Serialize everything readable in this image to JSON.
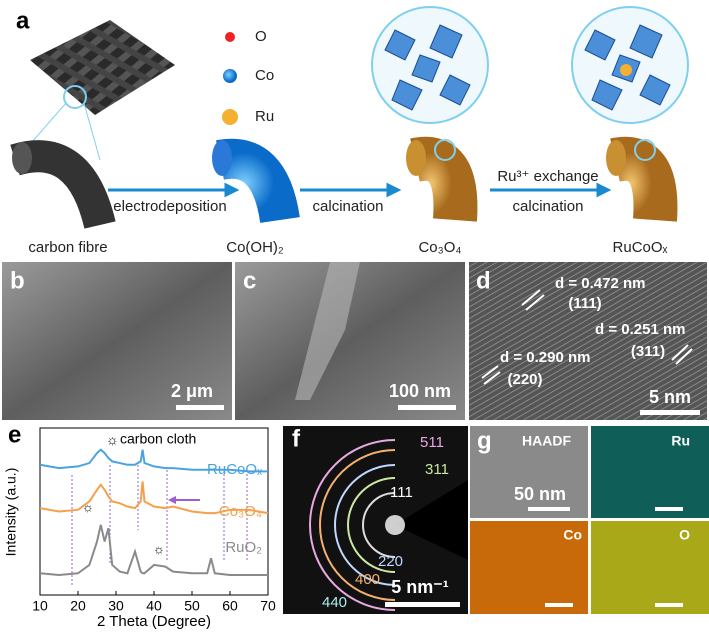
{
  "panel_a": {
    "letter": "a",
    "legend": [
      "O",
      "Co",
      "Ru"
    ],
    "labels": {
      "fibre": "carbon fibre",
      "step1": "electrodeposition",
      "hydroxide": "Co(OH)₂",
      "step2": "calcination",
      "oxide": "Co₃O₄",
      "step3a": "Ru³⁺ exchange",
      "step3b": "calcination",
      "product": "RuCoOₓ"
    }
  },
  "panel_b": {
    "letter": "b",
    "scale": "2 μm"
  },
  "panel_c": {
    "letter": "c",
    "scale": "100 nm"
  },
  "panel_d": {
    "letter": "d",
    "spacings": [
      {
        "d": "d = 0.472 nm",
        "plane": "(111)"
      },
      {
        "d": "d = 0.251 nm",
        "plane": "(311)"
      },
      {
        "d": "d = 0.290 nm",
        "plane": "(220)"
      }
    ],
    "scale": "5 nm"
  },
  "panel_e": {
    "letter": "e",
    "legend": "carbon cloth",
    "xlabel": "2 Theta (Degree)",
    "ylabel": "Intensity (a.u.)",
    "xlim": [
      10,
      70
    ],
    "xticks": [
      10,
      20,
      30,
      40,
      50,
      60,
      70
    ],
    "ylim": [
      0,
      10
    ],
    "x": [
      10,
      15,
      20,
      23,
      25,
      26,
      27,
      28,
      29,
      31,
      33,
      35,
      36.5,
      37,
      37.5,
      40,
      43,
      45,
      50,
      54,
      55,
      56,
      60,
      65,
      70
    ],
    "series": [
      {
        "name": "RuCoOₓ",
        "color": "#4aa3df",
        "values": [
          7.8,
          7.6,
          7.7,
          7.9,
          8.5,
          8.7,
          8.5,
          8.2,
          8.0,
          7.9,
          7.8,
          7.8,
          8.0,
          8.7,
          7.9,
          7.7,
          7.6,
          7.6,
          7.5,
          7.5,
          7.5,
          7.5,
          7.5,
          7.4,
          7.4
        ]
      },
      {
        "name": "Co₃O₄",
        "color": "#f5a04a",
        "values": [
          5.2,
          5.0,
          5.1,
          5.6,
          6.3,
          6.6,
          6.3,
          5.9,
          5.6,
          5.5,
          5.3,
          5.2,
          5.6,
          6.8,
          5.6,
          5.3,
          5.2,
          5.3,
          5.0,
          4.9,
          4.9,
          4.9,
          5.1,
          5.1,
          4.9
        ]
      },
      {
        "name": "RuO₂",
        "color": "#8a8a8a",
        "values": [
          1.3,
          1.2,
          1.3,
          1.8,
          3.2,
          4.2,
          3.2,
          4.0,
          1.8,
          1.4,
          1.3,
          2.6,
          1.4,
          1.3,
          1.3,
          1.8,
          1.7,
          1.4,
          1.3,
          1.3,
          2.2,
          1.3,
          1.2,
          1.2,
          1.2
        ]
      }
    ]
  },
  "panel_f": {
    "letter": "f",
    "rings": [
      "511",
      "311",
      "111",
      "220",
      "400",
      "440"
    ],
    "scale": "5 nm⁻¹"
  },
  "panel_g": {
    "letter": "g",
    "tiles": [
      "HAADF",
      "Ru",
      "Co",
      "O"
    ],
    "scale": "50 nm"
  }
}
